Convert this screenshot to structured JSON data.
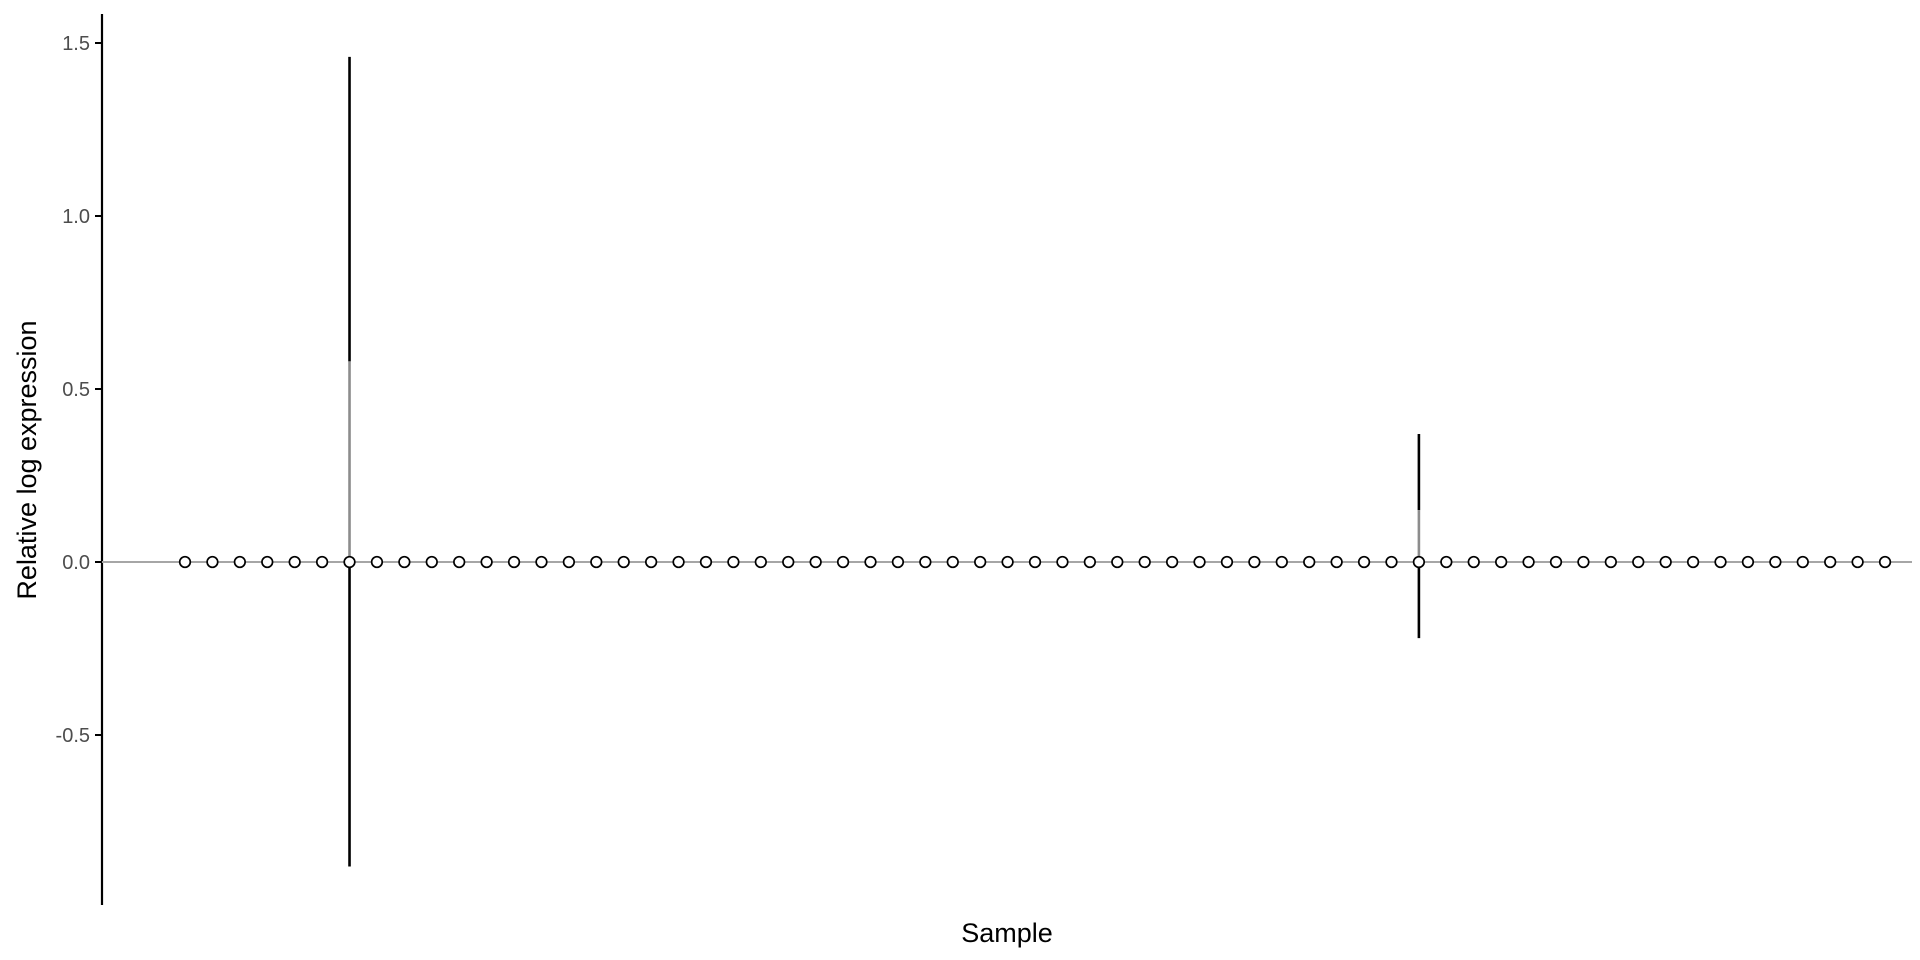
{
  "chart_data": {
    "type": "scatter",
    "xlabel": "Sample",
    "ylabel": "Relative log expression",
    "x_tick_labels_shown": false,
    "ylim": [
      -0.99,
      1.58
    ],
    "yticks": [
      -0.5,
      0.0,
      0.5,
      1.0,
      1.5
    ],
    "ytick_labels": [
      "-0.5",
      "0.0",
      "0.5",
      "1.0",
      "1.5"
    ],
    "grid": false,
    "legend": "none",
    "reference_line_y": 0,
    "x": [
      1,
      2,
      3,
      4,
      5,
      6,
      7,
      8,
      9,
      10,
      11,
      12,
      13,
      14,
      15,
      16,
      17,
      18,
      19,
      20,
      21,
      22,
      23,
      24,
      25,
      26,
      27,
      28,
      29,
      30,
      31,
      32,
      33,
      34,
      35,
      36,
      37,
      38,
      39,
      40,
      41,
      42,
      43,
      44,
      45,
      46,
      47,
      48,
      49,
      50,
      51,
      52,
      53,
      54,
      55,
      56,
      57,
      58,
      59,
      60,
      61,
      62,
      63
    ],
    "median": [
      0,
      0,
      0,
      0,
      0,
      0,
      0,
      0,
      0,
      0,
      0,
      0,
      0,
      0,
      0,
      0,
      0,
      0,
      0,
      0,
      0,
      0,
      0,
      0,
      0,
      0,
      0,
      0,
      0,
      0,
      0,
      0,
      0,
      0,
      0,
      0,
      0,
      0,
      0,
      0,
      0,
      0,
      0,
      0,
      0,
      0,
      0,
      0,
      0,
      0,
      0,
      0,
      0,
      0,
      0,
      0,
      0,
      0,
      0,
      0,
      0,
      0,
      0
    ],
    "boxes": [
      {
        "x": 7,
        "whisker_low": -0.88,
        "q1": 0.0,
        "median": 0.0,
        "q3": 0.58,
        "whisker_high": 1.46
      },
      {
        "x": 46,
        "whisker_low": -0.22,
        "q1": 0.0,
        "median": 0.0,
        "q3": 0.15,
        "whisker_high": 0.37
      }
    ]
  },
  "colors": {
    "axis": "#000000",
    "whisker": "#000000",
    "iqr_segment": "#8c8c8c",
    "reference_line": "#a6a6a6",
    "point_stroke": "#000000",
    "tick_text": "#4d4d4d"
  }
}
